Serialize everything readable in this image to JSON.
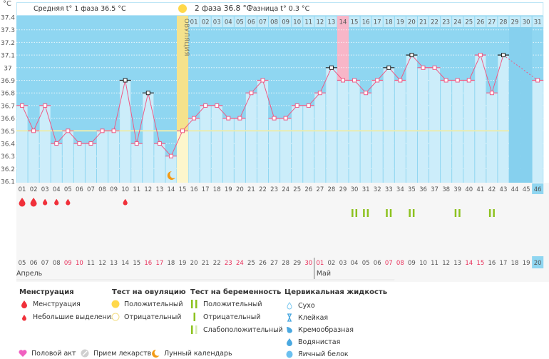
{
  "header": {
    "unit": "°C",
    "phase1_label": "Средняя t° 1 фаза 36.5 °C",
    "phase2_label": "2 фаза 36.8 °C",
    "diff_label": "Разница t° 0.3 °C",
    "ovulation_label": "ОВУЛЯЦИЯ"
  },
  "chart_data": {
    "type": "bar+line",
    "title": "",
    "ylabel": "°C",
    "ylim": [
      36.1,
      37.4
    ],
    "yticks": [
      "37.4",
      "37.3",
      "37.2",
      "37.1",
      "37",
      "36.9",
      "36.8",
      "36.7",
      "36.6",
      "36.5",
      "36.4",
      "36.3",
      "36.2",
      "36.1"
    ],
    "cycle_days": [
      "01",
      "02",
      "03",
      "04",
      "05",
      "06",
      "07",
      "08",
      "09",
      "10",
      "11",
      "12",
      "13",
      "14",
      "15",
      "16",
      "17",
      "18",
      "19",
      "20",
      "21",
      "22",
      "23",
      "24",
      "25",
      "26",
      "27",
      "28",
      "29",
      "30",
      "31",
      "32",
      "33",
      "34",
      "35",
      "36",
      "37",
      "38",
      "39",
      "40",
      "41",
      "42",
      "43",
      "44",
      "45",
      "46"
    ],
    "temperatures": [
      36.7,
      36.5,
      36.7,
      36.4,
      36.5,
      36.4,
      36.4,
      36.5,
      36.5,
      36.9,
      36.4,
      36.8,
      36.4,
      36.3,
      36.5,
      36.6,
      36.7,
      36.7,
      36.6,
      36.6,
      36.8,
      36.9,
      36.6,
      36.6,
      36.7,
      36.7,
      36.8,
      37.0,
      36.9,
      36.9,
      36.8,
      36.9,
      37.0,
      36.9,
      37.1,
      37.0,
      37.0,
      36.9,
      36.9,
      36.9,
      37.1,
      36.8,
      37.1,
      null,
      null,
      36.9
    ],
    "highlighted_days": [
      10,
      12,
      28,
      33,
      35,
      43
    ],
    "coverline": 36.5,
    "ovulation_day": 15,
    "today_day": 29,
    "current_day": 46,
    "top_dates_start_day": 16,
    "top_dates": [
      "01",
      "02",
      "03",
      "04",
      "05",
      "06",
      "07",
      "08",
      "09",
      "10",
      "11",
      "12",
      "13",
      "14",
      "15",
      "16",
      "17",
      "18",
      "19",
      "20",
      "21",
      "22",
      "23",
      "24",
      "25",
      "26",
      "27",
      "28",
      "29",
      "30",
      "31"
    ],
    "calendar_dates": [
      "05",
      "06",
      "07",
      "08",
      "09",
      "10",
      "11",
      "12",
      "13",
      "14",
      "15",
      "16",
      "17",
      "18",
      "19",
      "20",
      "21",
      "22",
      "23",
      "24",
      "25",
      "26",
      "27",
      "28",
      "29",
      "30",
      "01",
      "02",
      "03",
      "04",
      "05",
      "06",
      "07",
      "08",
      "09",
      "10",
      "11",
      "12",
      "13",
      "14",
      "15",
      "16",
      "17",
      "18",
      "19",
      "20"
    ],
    "weekend_days": [
      5,
      6,
      12,
      13,
      19,
      20,
      26,
      27,
      33,
      34,
      40,
      41
    ],
    "months": [
      {
        "label": "Апрель",
        "start_day": 1
      },
      {
        "label": "Май",
        "start_day": 27
      }
    ],
    "menstruation": [
      {
        "day": 1,
        "type": "heavy"
      },
      {
        "day": 2,
        "type": "heavy"
      },
      {
        "day": 3,
        "type": "light"
      },
      {
        "day": 4,
        "type": "light"
      },
      {
        "day": 5,
        "type": "light"
      },
      {
        "day": 10,
        "type": "light"
      }
    ],
    "pregnancy_tests_positive": [
      30,
      31,
      33,
      35,
      39,
      42
    ],
    "moon_day": 14
  },
  "colors": {
    "bg": "#8fd6f1",
    "bar": "#ccedfa",
    "line": "#ee5a85",
    "ovulation": "#f5e28c",
    "ovulation_light": "#fdf6cc",
    "today": "#f8b6c8",
    "test": "#8dc21f",
    "drop": "#f0303a",
    "weekend": "#e8305a"
  },
  "legend": {
    "menstruation": {
      "title": "Менструация",
      "items": [
        "Менструация",
        "Небольшие выделения"
      ]
    },
    "ovulation_test": {
      "title": "Тест на овуляцию",
      "items": [
        "Положительный",
        "Отрицательный"
      ]
    },
    "pregnancy_test": {
      "title": "Тест на беременность",
      "items": [
        "Положительный",
        "Отрицательный",
        "Слабоположительный"
      ]
    },
    "cervical": {
      "title": "Цервикальная жидкость",
      "items": [
        "Сухо",
        "Клейкая",
        "Кремообразная",
        "Водянистая",
        "Яичный белок"
      ]
    },
    "other": [
      "Половой акт",
      "Прием лекарств",
      "Лунный календарь"
    ]
  }
}
